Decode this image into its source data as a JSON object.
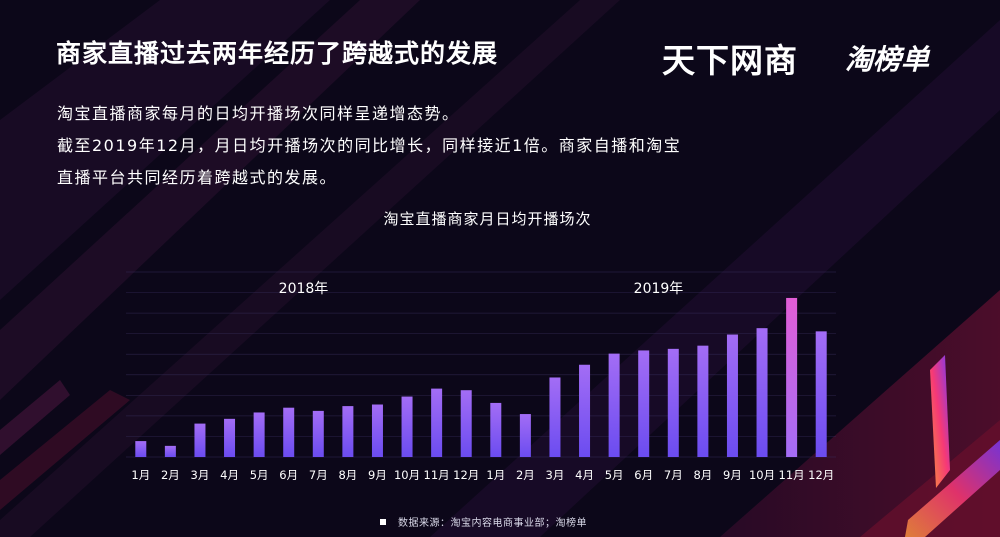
{
  "header": {
    "title": "商家直播过去两年经历了跨越式的发展",
    "brand_primary": "天下网商",
    "brand_secondary": "淘榜单"
  },
  "description": {
    "line1": "淘宝直播商家每月的日均开播场次同样呈递增态势。",
    "line2": "截至2019年12月，月日均开播场次的同比增长，同样接近1倍。商家自播和淘宝",
    "line3": "直播平台共同经历着跨越式的发展。"
  },
  "chart_data": {
    "type": "bar",
    "title": "淘宝直播商家月日均开播场次",
    "group_labels": [
      "2018年",
      "2019年"
    ],
    "categories": [
      "1月",
      "2月",
      "3月",
      "4月",
      "5月",
      "6月",
      "7月",
      "8月",
      "9月",
      "10月",
      "11月",
      "12月",
      "1月",
      "2月",
      "3月",
      "4月",
      "5月",
      "6月",
      "7月",
      "8月",
      "9月",
      "10月",
      "11月",
      "12月"
    ],
    "values": [
      10,
      7,
      21,
      24,
      28,
      31,
      29,
      32,
      33,
      38,
      43,
      42,
      34,
      27,
      50,
      58,
      65,
      67,
      68,
      70,
      77,
      81,
      100,
      79
    ],
    "ylim": [
      0,
      105
    ],
    "y_axis_visible": false,
    "grid": true,
    "colors": {
      "bar_low": "#6b4cf0",
      "bar_high": "#a36df5",
      "bar_peak": "#e25ed6",
      "axis_label": "#ffffff",
      "grid": "#3a3160"
    }
  },
  "footer": {
    "source": "数据来源：淘宝内容电商事业部；淘榜单"
  }
}
